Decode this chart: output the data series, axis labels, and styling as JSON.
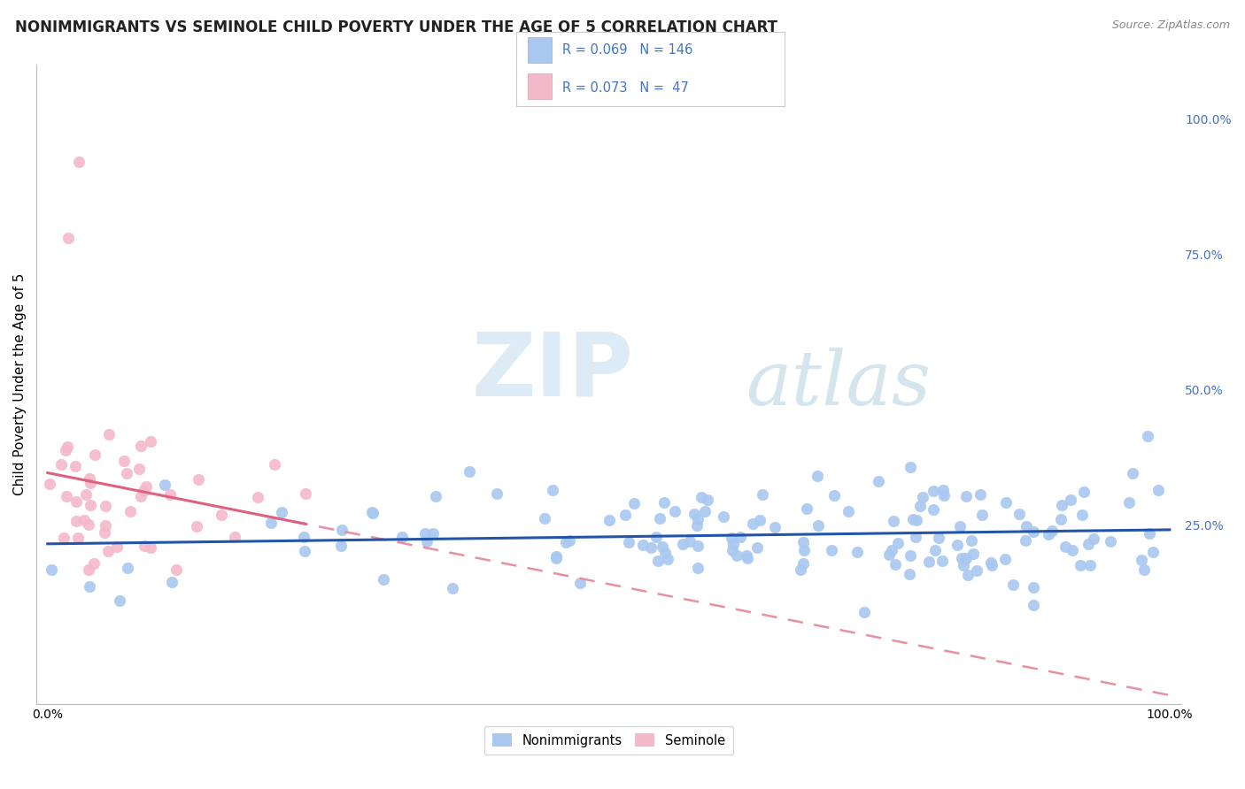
{
  "title": "NONIMMIGRANTS VS SEMINOLE CHILD POVERTY UNDER THE AGE OF 5 CORRELATION CHART",
  "source": "Source: ZipAtlas.com",
  "ylabel": "Child Poverty Under the Age of 5",
  "xlim": [
    -0.01,
    1.01
  ],
  "ylim": [
    -0.08,
    1.1
  ],
  "grid_color": "#cccccc",
  "background_color": "#ffffff",
  "series1_color": "#a8c8f0",
  "series2_color": "#f5b8cb",
  "trendline1_color": "#2255aa",
  "trendline2_color": "#e06080",
  "trendline2_dashed_color": "#e8909f",
  "legend_label1": "Nonimmigrants",
  "legend_label2": "Seminole",
  "watermark_zip": "ZIP",
  "watermark_atlas": "atlas",
  "title_fontsize": 12,
  "axis_fontsize": 11,
  "tick_fontsize": 10,
  "right_tick_color": "#4472c4"
}
